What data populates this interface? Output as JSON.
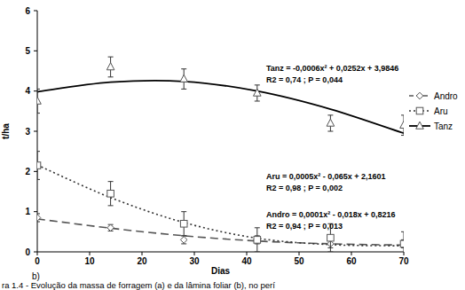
{
  "chart_data": {
    "type": "scatter",
    "y_label": "t/ha",
    "x_label": "Dias",
    "x": [
      0,
      14,
      28,
      42,
      56,
      70
    ],
    "xlim": [
      0,
      70
    ],
    "xticks": [
      0,
      10,
      20,
      30,
      40,
      50,
      60,
      70
    ],
    "ylim": [
      0,
      6
    ],
    "yticks": [
      0,
      1,
      2,
      3,
      4,
      5,
      6
    ],
    "grid": false,
    "legend": "right",
    "series": [
      {
        "name": "Andro",
        "marker": "diamond",
        "line_style": "dashed",
        "values": [
          0.85,
          0.6,
          0.3,
          0.3,
          0.2,
          0.2
        ],
        "errors": [
          0.1,
          0.08,
          0.1,
          0.1,
          0.1,
          0.1
        ],
        "trend": [
          0.82,
          0.59,
          0.4,
          0.27,
          0.2,
          0.17
        ]
      },
      {
        "name": "Aru",
        "marker": "square",
        "line_style": "dotted",
        "values": [
          2.15,
          1.45,
          0.7,
          0.3,
          0.35,
          0.2
        ],
        "errors": [
          0.35,
          0.3,
          0.3,
          0.3,
          0.35,
          0.3
        ],
        "trend": [
          2.16,
          1.35,
          0.73,
          0.34,
          0.18,
          0.15
        ]
      },
      {
        "name": "Tanz",
        "marker": "triangle",
        "line_style": "solid",
        "values": [
          3.75,
          4.6,
          4.3,
          3.95,
          3.2,
          3.15
        ],
        "errors": [
          0.3,
          0.25,
          0.25,
          0.2,
          0.2,
          0.25
        ],
        "trend": [
          3.98,
          4.22,
          4.24,
          4.0,
          3.55,
          2.95
        ]
      }
    ],
    "annotations": [
      "Tanz = -0,0006x² + 0,0252x + 3,9846",
      "R2 = 0,74 ; P = 0,044",
      "Aru = 0,0005x² - 0,065x + 2,1601",
      "R2 = 0,98 ; P = 0,002",
      "Andro = 0,0001x² - 0,018x + 0,8216",
      "R2 = 0,94 ; P = 0,013"
    ],
    "panel_label": "b)",
    "caption": "ra 1.4 - Evolução da massa de forragem (a) e da lâmina foliar (b), no perí"
  }
}
